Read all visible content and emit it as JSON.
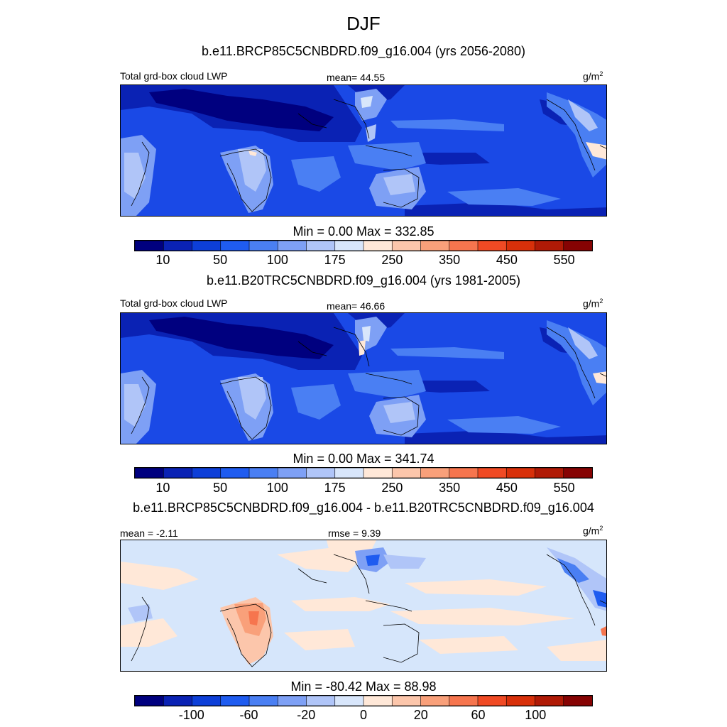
{
  "title": "DJF",
  "panels": [
    {
      "title": "b.e11.BRCP85C5CNBDRD.f09_g16.004 (yrs 2056-2080)",
      "left_label": "Total grd-box cloud LWP",
      "center_label": "mean=  44.55",
      "units": "g/m",
      "units_exp": "2",
      "minmax": "Min =   0.00 Max = 332.85",
      "colorbar_labels": [
        "10",
        "50",
        "100",
        "175",
        "250",
        "350",
        "450",
        "550"
      ]
    },
    {
      "title": "b.e11.B20TRC5CNBDRD.f09_g16.004 (yrs 1981-2005)",
      "left_label": "Total grd-box cloud LWP",
      "center_label": "mean=  46.66",
      "units": "g/m",
      "units_exp": "2",
      "minmax": "Min =   0.00 Max = 341.74",
      "colorbar_labels": [
        "10",
        "50",
        "100",
        "175",
        "250",
        "350",
        "450",
        "550"
      ]
    },
    {
      "title": "b.e11.BRCP85C5CNBDRD.f09_g16.004 - b.e11.B20TRC5CNBDRD.f09_g16.004",
      "left_label": "mean =  -2.11",
      "center_label": "rmse =   9.39",
      "units": "g/m",
      "units_exp": "2",
      "minmax": "Min = -80.42 Max =  88.98",
      "colorbar_labels": [
        "-100",
        "-60",
        "-20",
        "0",
        "20",
        "60",
        "100"
      ]
    }
  ],
  "colors": {
    "palette": [
      "#00007f",
      "#0a22b4",
      "#0d3fd8",
      "#1f5cf0",
      "#4a7ff3",
      "#7ea0f5",
      "#b0c5f8",
      "#d8e6fb",
      "#ffe8d8",
      "#fcc6ab",
      "#f9a07a",
      "#f6754e",
      "#f04a24",
      "#d8300a",
      "#b01a06",
      "#860303"
    ],
    "panel1_background": "#1a49e6",
    "panel2_background": "#1a49e6",
    "panel3_background": "#d6e6fb",
    "coastline": "#000000"
  },
  "chart_data": [
    {
      "type": "heatmap",
      "title": "b.e11.BRCP85C5CNBDRD.f09_g16.004 (yrs 2056-2080)",
      "variable": "Total grd-box cloud LWP",
      "units": "g/m2",
      "mean": 44.55,
      "min": 0.0,
      "max": 332.85,
      "contour_levels": [
        10,
        25,
        50,
        75,
        100,
        125,
        175,
        200,
        250,
        300,
        350,
        400,
        450,
        500,
        550
      ],
      "colorbar_labels": [
        10,
        50,
        100,
        175,
        250,
        350,
        450,
        550
      ]
    },
    {
      "type": "heatmap",
      "title": "b.e11.B20TRC5CNBDRD.f09_g16.004 (yrs 1981-2005)",
      "variable": "Total grd-box cloud LWP",
      "units": "g/m2",
      "mean": 46.66,
      "min": 0.0,
      "max": 341.74,
      "contour_levels": [
        10,
        25,
        50,
        75,
        100,
        125,
        175,
        200,
        250,
        300,
        350,
        400,
        450,
        500,
        550
      ],
      "colorbar_labels": [
        10,
        50,
        100,
        175,
        250,
        350,
        450,
        550
      ]
    },
    {
      "type": "heatmap",
      "title": "b.e11.BRCP85C5CNBDRD.f09_g16.004 - b.e11.B20TRC5CNBDRD.f09_g16.004",
      "units": "g/m2",
      "mean": -2.11,
      "rmse": 9.39,
      "min": -80.42,
      "max": 88.98,
      "contour_levels": [
        -120,
        -100,
        -80,
        -60,
        -40,
        -20,
        -10,
        0,
        10,
        20,
        40,
        60,
        80,
        100,
        120
      ],
      "colorbar_labels": [
        -100,
        -60,
        -20,
        0,
        20,
        60,
        100
      ]
    }
  ]
}
